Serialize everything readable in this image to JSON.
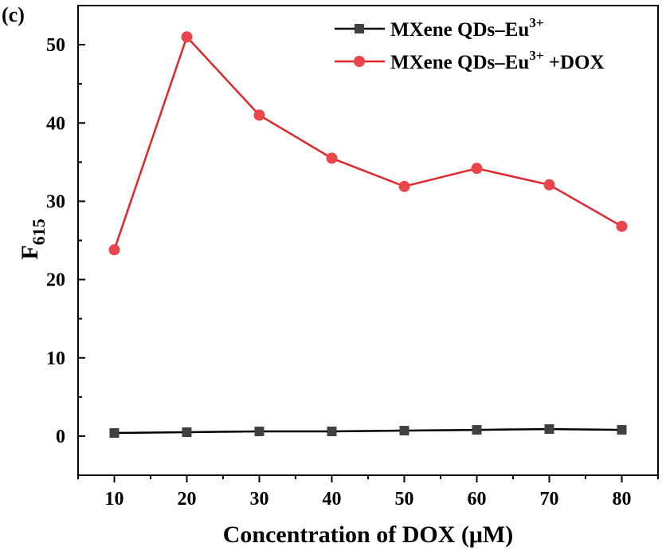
{
  "chart_data": {
    "type": "line",
    "panel_label": "(c)",
    "xlabel": "Concentration of DOX (μM)",
    "ylabel": {
      "main": "F",
      "sub": "615"
    },
    "xlim": [
      5,
      85
    ],
    "ylim": [
      -5,
      55
    ],
    "xticks": [
      10,
      20,
      30,
      40,
      50,
      60,
      70,
      80
    ],
    "yticks": [
      0,
      10,
      20,
      30,
      40,
      50
    ],
    "x": [
      10,
      20,
      30,
      40,
      50,
      60,
      70,
      80
    ],
    "series": [
      {
        "name": "MXene QDs–Eu3+",
        "legend": {
          "base": "MXene QDs–Eu",
          "sup": "3+",
          "suffix": ""
        },
        "marker": "square",
        "color": "#404040",
        "line_color": "#000000",
        "values": [
          0.4,
          0.5,
          0.6,
          0.6,
          0.7,
          0.8,
          0.9,
          0.8
        ]
      },
      {
        "name": "MXene QDs–Eu3+ +DOX",
        "legend": {
          "base": "MXene QDs–Eu",
          "sup": "3+",
          "suffix": " +DOX"
        },
        "marker": "circle",
        "color": "#e8464b",
        "line_color": "#e0262b",
        "values": [
          23.8,
          51.0,
          41.0,
          35.5,
          31.9,
          34.2,
          32.1,
          26.8
        ]
      }
    ],
    "legend_position": "top-right"
  }
}
